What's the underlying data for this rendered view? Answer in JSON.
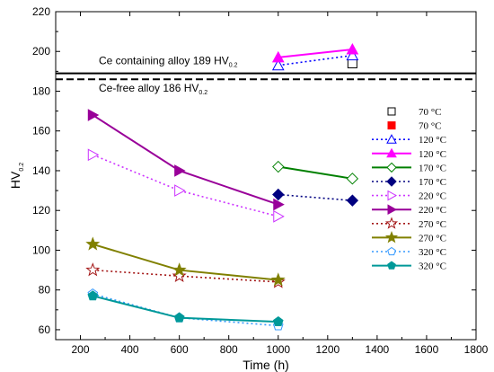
{
  "chart_data": {
    "type": "line",
    "xlabel": "Time (h)",
    "ylabel_main": "HV",
    "ylabel_sub": "0.2",
    "xlim": [
      100,
      1800
    ],
    "ylim": [
      55,
      220
    ],
    "x_ticks": [
      "200",
      "400",
      "600",
      "800",
      "1000",
      "1200",
      "1400",
      "1600",
      "1800"
    ],
    "y_ticks": [
      "60",
      "80",
      "100",
      "120",
      "140",
      "160",
      "180",
      "200",
      "220"
    ],
    "x_tick_values": [
      200,
      400,
      600,
      800,
      1000,
      1200,
      1400,
      1600,
      1800
    ],
    "y_tick_values": [
      60,
      80,
      100,
      120,
      140,
      160,
      180,
      200,
      220
    ],
    "grid": false,
    "legend_position": "right",
    "reference_lines": [
      {
        "value": 189,
        "style": "solid",
        "label": "Ce containing alloy 189 HV",
        "label_sub": "0.2"
      },
      {
        "value": 186,
        "style": "dashed",
        "label": "Ce-free alloy 186 HV",
        "label_sub": "0.2"
      }
    ],
    "series": [
      {
        "name": "70 °C",
        "color": "#000000",
        "marker": "square-open",
        "line": "none",
        "x": [
          1300
        ],
        "y": [
          194
        ]
      },
      {
        "name": "70 °C",
        "color": "#ff0000",
        "marker": "square-filled",
        "line": "none",
        "x": [],
        "y": []
      },
      {
        "name": "120 °C",
        "color": "#0000ff",
        "marker": "triangle-open",
        "line": "dotted",
        "x": [
          1000,
          1300
        ],
        "y": [
          193,
          198
        ]
      },
      {
        "name": "120 °C",
        "color": "#ff00ff",
        "marker": "triangle-filled",
        "line": "solid",
        "x": [
          1000,
          1300
        ],
        "y": [
          197,
          201
        ]
      },
      {
        "name": "170 °C",
        "color": "#008000",
        "marker": "diamond-open",
        "line": "solid",
        "x": [
          1000,
          1300
        ],
        "y": [
          142,
          136
        ]
      },
      {
        "name": "170 °C",
        "color": "#000080",
        "marker": "diamond-filled",
        "line": "dotted",
        "x": [
          1000,
          1300
        ],
        "y": [
          128,
          125
        ]
      },
      {
        "name": "220 °C",
        "color": "#cc33ff",
        "marker": "triangle-right-open",
        "line": "dotted",
        "x": [
          250,
          600,
          1000
        ],
        "y": [
          148,
          130,
          117
        ]
      },
      {
        "name": "220 °C",
        "color": "#990099",
        "marker": "triangle-right-filled",
        "line": "solid",
        "x": [
          250,
          600,
          1000
        ],
        "y": [
          168,
          140,
          123
        ]
      },
      {
        "name": "270 °C",
        "color": "#a31515",
        "marker": "star-open",
        "line": "dotted",
        "x": [
          250,
          600,
          1000
        ],
        "y": [
          90,
          87,
          84
        ]
      },
      {
        "name": "270 °C",
        "color": "#808000",
        "marker": "star-filled",
        "line": "solid",
        "x": [
          250,
          600,
          1000
        ],
        "y": [
          103,
          90,
          85
        ]
      },
      {
        "name": "320 °C",
        "color": "#3399ff",
        "marker": "pentagon-open",
        "line": "dotted",
        "x": [
          250,
          600,
          1000
        ],
        "y": [
          78,
          66,
          62
        ]
      },
      {
        "name": "320 °C",
        "color": "#009999",
        "marker": "pentagon-filled",
        "line": "solid",
        "x": [
          250,
          600,
          1000
        ],
        "y": [
          77,
          66,
          64
        ]
      }
    ]
  }
}
